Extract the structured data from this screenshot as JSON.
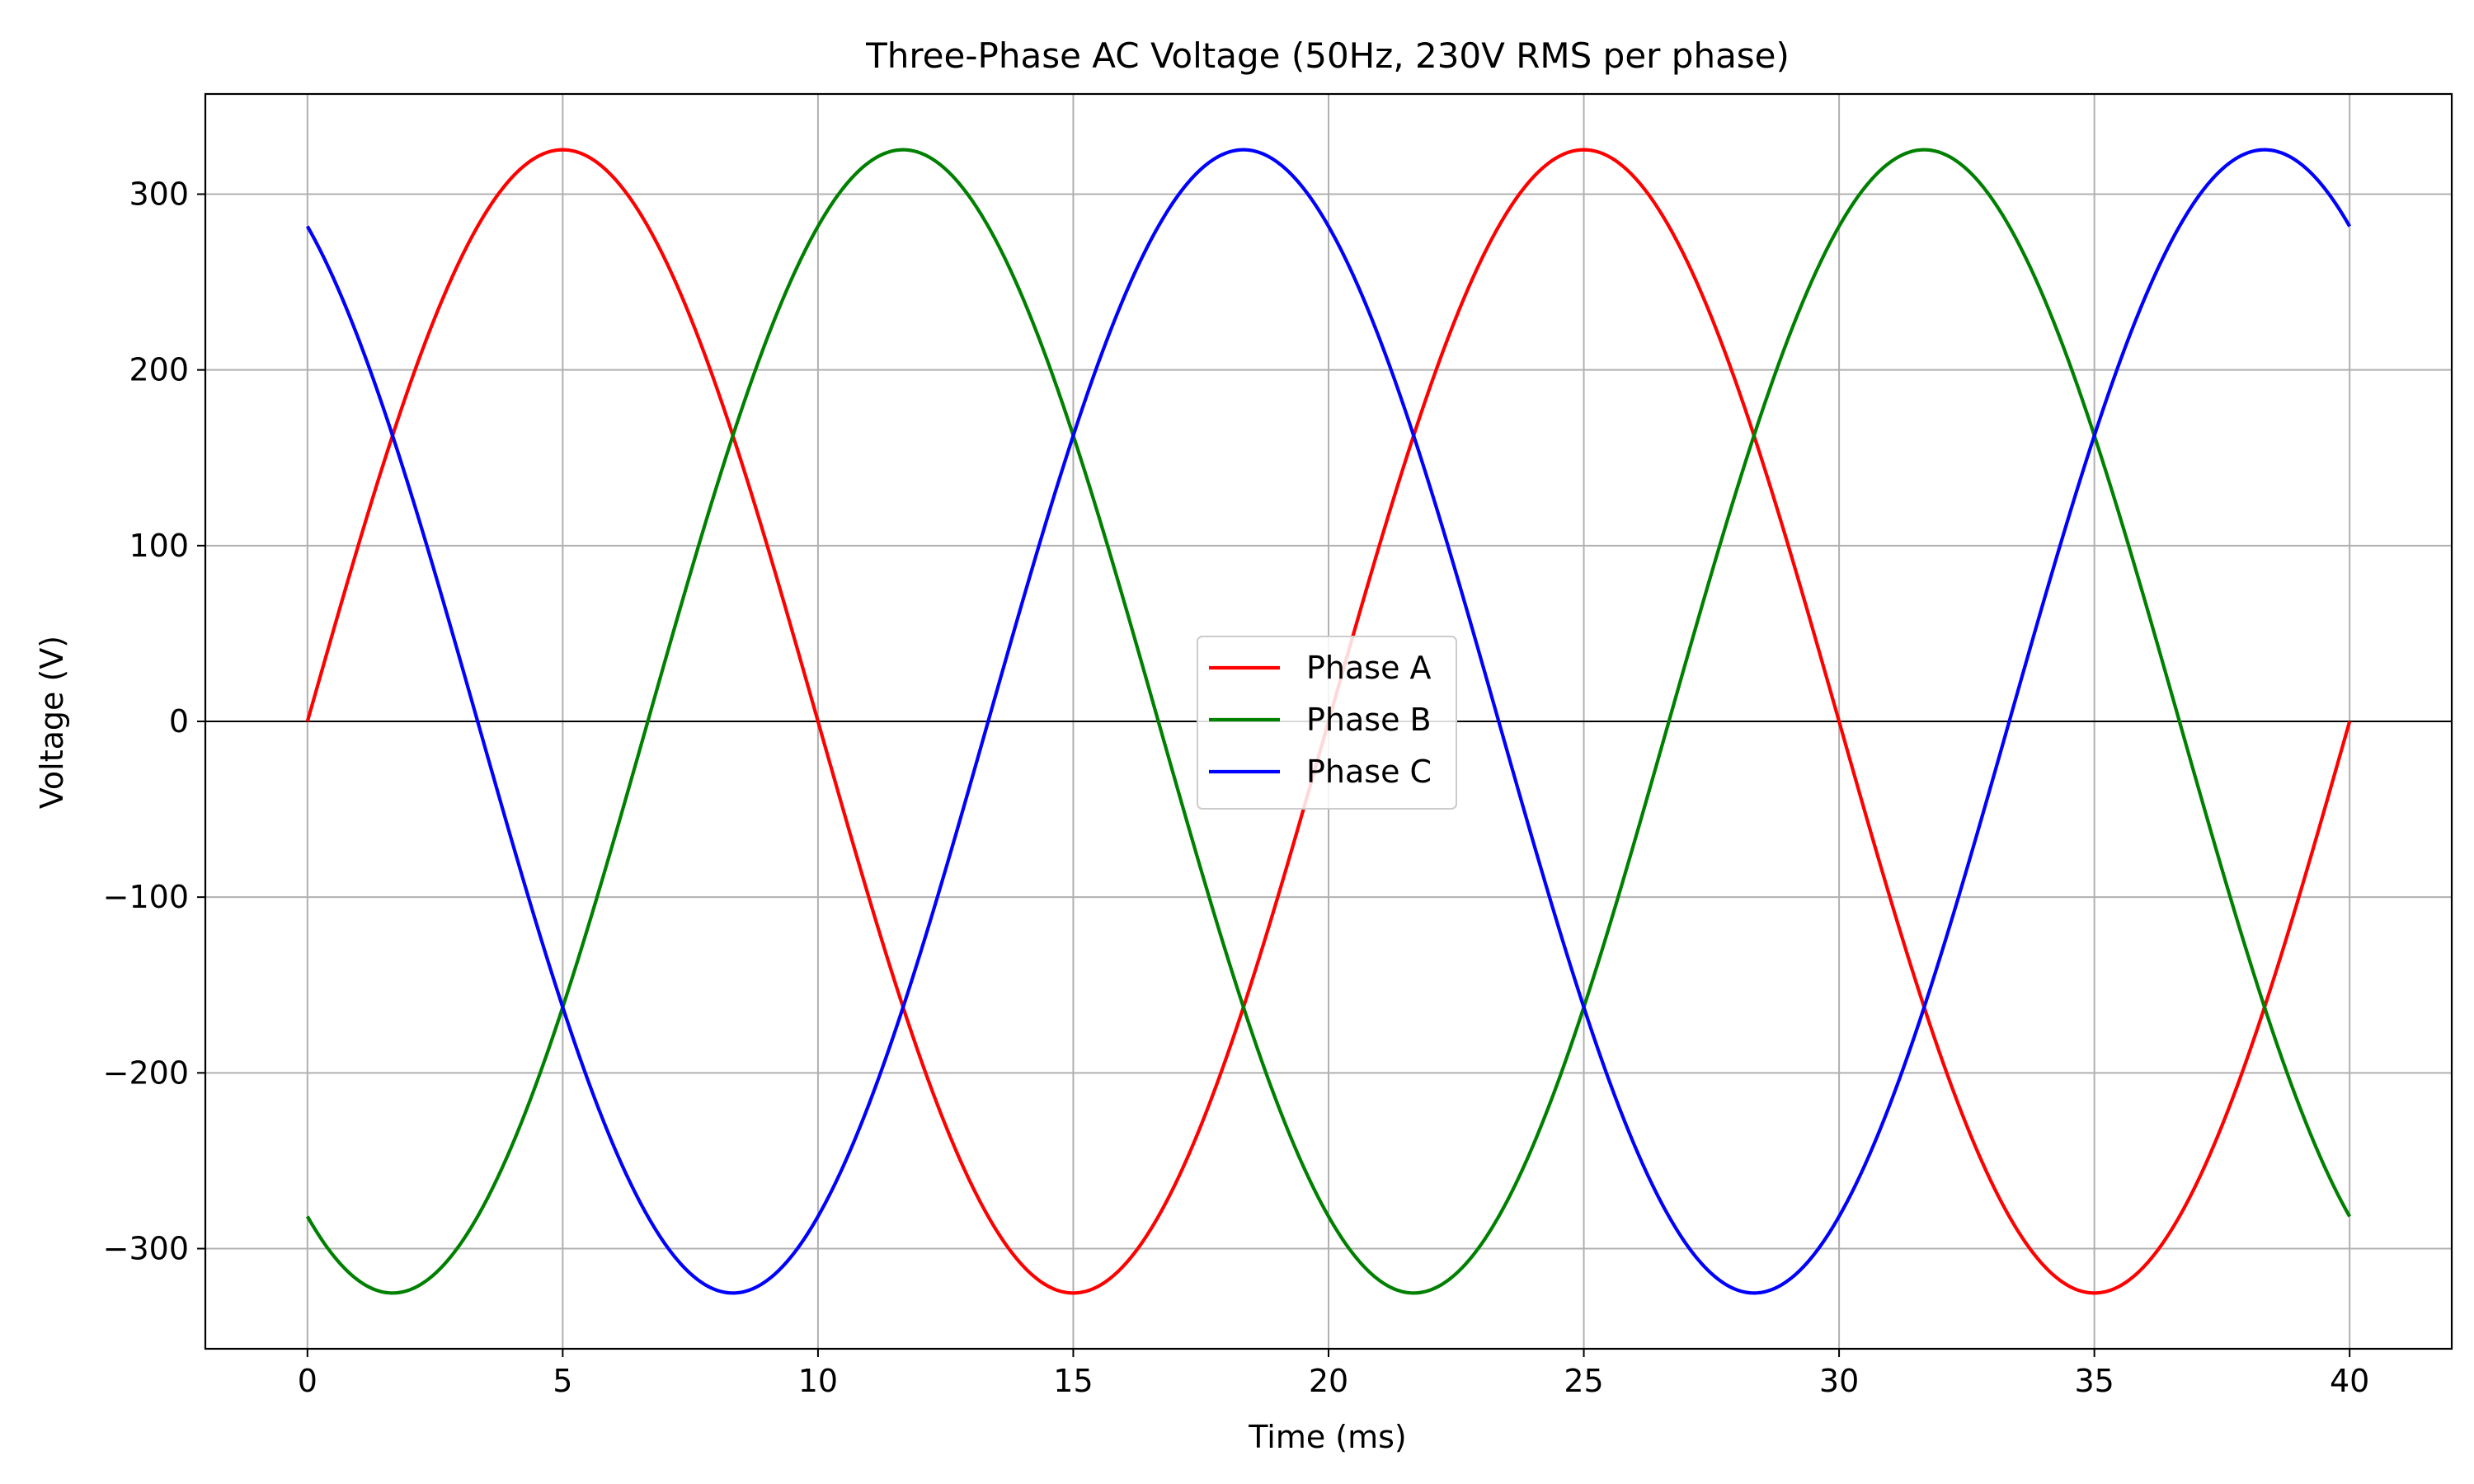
{
  "chart_data": {
    "type": "line",
    "title": "Three-Phase AC Voltage (50Hz, 230V RMS per phase)",
    "xlabel": "Time (ms)",
    "ylabel": "Voltage (V)",
    "xlim": [
      -2,
      42
    ],
    "ylim": [
      -357,
      357
    ],
    "x_ticks": [
      0,
      5,
      10,
      15,
      20,
      25,
      30,
      35,
      40
    ],
    "y_ticks": [
      -300,
      -200,
      -100,
      0,
      100,
      200,
      300
    ],
    "grid": true,
    "zero_line": true,
    "legend_position": "center",
    "frequency_hz": 50,
    "amplitude_v": 325.27,
    "series": [
      {
        "name": "Phase A",
        "color": "#ff0000",
        "phase_shift_deg": 0,
        "x": [
          0,
          2.5,
          5,
          7.5,
          10,
          12.5,
          15,
          17.5,
          20,
          22.5,
          25,
          27.5,
          30,
          32.5,
          35,
          37.5,
          40
        ],
        "y": [
          0,
          230,
          325,
          230,
          0,
          -230,
          -325,
          -230,
          0,
          230,
          325,
          230,
          0,
          -230,
          -325,
          -230,
          0
        ]
      },
      {
        "name": "Phase B",
        "color": "#008000",
        "phase_shift_deg": -120,
        "x": [
          0,
          1.67,
          5,
          8.33,
          11.67,
          15,
          18.33,
          21.67,
          25,
          28.33,
          31.67,
          35,
          38.33,
          40
        ],
        "y": [
          -282,
          -325,
          -163,
          163,
          325,
          163,
          -163,
          -325,
          -163,
          163,
          325,
          163,
          -163,
          -282
        ]
      },
      {
        "name": "Phase C",
        "color": "#0000ff",
        "phase_shift_deg": 120,
        "x": [
          0,
          1.67,
          5,
          8.33,
          11.67,
          15,
          18.33,
          21.67,
          25,
          28.33,
          31.67,
          35,
          38.33,
          40
        ],
        "y": [
          282,
          163,
          -163,
          -325,
          -163,
          163,
          325,
          163,
          -163,
          -325,
          -163,
          163,
          325,
          282
        ]
      }
    ]
  }
}
